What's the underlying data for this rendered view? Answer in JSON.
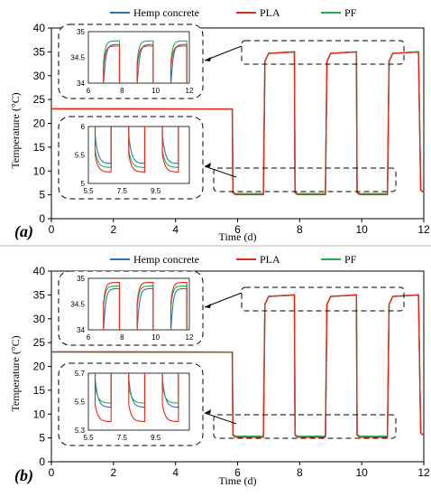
{
  "colors": {
    "hemp": "#2e75b6",
    "pla": "#e8291c",
    "pf": "#22b04c",
    "divider": "#b8b8b8"
  },
  "chart_data": [
    {
      "panel_label": "(a)",
      "type": "line",
      "xlabel": "Time (d)",
      "ylabel": "Temperature (°C)",
      "xlim": [
        0,
        12
      ],
      "ylim": [
        0,
        40
      ],
      "x_ticks": [
        "0",
        "2",
        "4",
        "6",
        "8",
        "10",
        "12"
      ],
      "y_ticks": [
        "0",
        "5",
        "10",
        "15",
        "20",
        "25",
        "30",
        "35",
        "40"
      ],
      "legend": [
        "Hemp concrete",
        "PLA",
        "PF"
      ],
      "legend_position": "top",
      "profile": {
        "initial_temp": 23,
        "first_drop_day": 5.85,
        "cycles": [
          {
            "cold_start": 5.85,
            "cold_end": 6.85,
            "hot_end": 7.85
          },
          {
            "cold_start": 7.85,
            "cold_end": 8.85,
            "hot_end": 9.85
          },
          {
            "cold_start": 9.85,
            "cold_end": 10.85,
            "hot_end": 11.85
          }
        ],
        "cold_temp": 5.2,
        "hot_temp": 35,
        "end_temp": 5.5
      },
      "insets": [
        {
          "name": "hot-phase",
          "xlim": [
            6,
            12
          ],
          "ylim": [
            34,
            35
          ],
          "x_ticks": [
            "6",
            "8",
            "10",
            "12"
          ],
          "y_ticks": [
            "34",
            "34.5",
            "35"
          ],
          "plateaus": {
            "Hemp concrete": 34.75,
            "PLA": 34.72,
            "PF": 34.82
          }
        },
        {
          "name": "cold-phase",
          "xlim": [
            5.5,
            11.5
          ],
          "ylim": [
            5,
            6
          ],
          "x_ticks": [
            "5.5",
            "7.5",
            "9.5"
          ],
          "y_ticks": [
            "5",
            "5.5",
            "6"
          ],
          "plateaus": {
            "Hemp concrete": 5.35,
            "PLA": 5.2,
            "PF": 5.28
          }
        }
      ]
    },
    {
      "panel_label": "(b)",
      "type": "line",
      "xlabel": "Time (d)",
      "ylabel": "Temperature (°C)",
      "xlim": [
        0,
        12
      ],
      "ylim": [
        0,
        40
      ],
      "x_ticks": [
        "0",
        "2",
        "4",
        "6",
        "8",
        "10",
        "12"
      ],
      "y_ticks": [
        "0",
        "5",
        "10",
        "15",
        "20",
        "25",
        "30",
        "35",
        "40"
      ],
      "legend": [
        "Hemp concrete",
        "PLA",
        "PF"
      ],
      "legend_position": "top",
      "profile": {
        "initial_temp": 23,
        "first_drop_day": 5.85,
        "cycles": [
          {
            "cold_start": 5.85,
            "cold_end": 6.85,
            "hot_end": 7.85
          },
          {
            "cold_start": 7.85,
            "cold_end": 8.85,
            "hot_end": 9.85
          },
          {
            "cold_start": 9.85,
            "cold_end": 10.85,
            "hot_end": 11.85
          }
        ],
        "cold_temp": 5.3,
        "hot_temp": 35,
        "end_temp": 5.5
      },
      "insets": [
        {
          "name": "hot-phase",
          "xlim": [
            6,
            12
          ],
          "ylim": [
            34,
            35
          ],
          "x_ticks": [
            "6",
            "8",
            "10",
            "12"
          ],
          "y_ticks": [
            "34",
            "34.5",
            "35"
          ],
          "plateaus": {
            "Hemp concrete": 34.8,
            "PLA": 34.92,
            "PF": 34.85
          }
        },
        {
          "name": "cold-phase",
          "xlim": [
            5.5,
            11.5
          ],
          "ylim": [
            5.3,
            5.7
          ],
          "x_ticks": [
            "5.5",
            "7.5",
            "9.5"
          ],
          "y_ticks": [
            "5.3",
            "5.5",
            "5.7"
          ],
          "plateaus": {
            "Hemp concrete": 5.46,
            "PLA": 5.36,
            "PF": 5.49
          }
        }
      ]
    }
  ]
}
